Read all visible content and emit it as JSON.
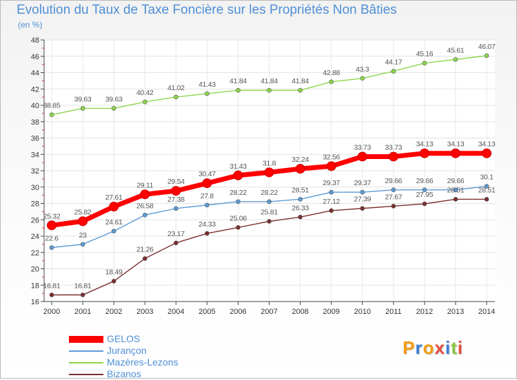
{
  "chart_data": {
    "type": "line",
    "title": "Evolution du Taux de Taxe Foncière sur les Propriétés Non Bâties",
    "ylabel": "(en %)",
    "x": [
      "2000",
      "2001",
      "2002",
      "2003",
      "2004",
      "2005",
      "2006",
      "2007",
      "2008",
      "2009",
      "2010",
      "2011",
      "2012",
      "2013",
      "2014"
    ],
    "ylim": [
      16,
      48
    ],
    "yticks": [
      16,
      18,
      20,
      22,
      24,
      26,
      28,
      30,
      32,
      34,
      36,
      38,
      40,
      42,
      44,
      46,
      48
    ],
    "grid": true,
    "legend_placement": "bottom-left",
    "series": [
      {
        "name": "GELOS",
        "color": "#ff0000",
        "values": [
          25.32,
          25.82,
          27.61,
          29.11,
          29.54,
          30.47,
          31.43,
          31.8,
          32.24,
          32.56,
          33.73,
          33.73,
          34.13,
          34.13,
          34.13
        ],
        "labels": [
          "25.32",
          "25.82",
          "27.61",
          "29.11",
          "29.54",
          "30.47",
          "31.43",
          "31.8",
          "32.24",
          "32.56",
          "33.73",
          "33.73",
          "34.13",
          "34.13",
          "34.13"
        ]
      },
      {
        "name": "Jurançon",
        "color": "#5b9bd5",
        "values": [
          22.6,
          23,
          24.61,
          26.58,
          27.38,
          27.8,
          28.22,
          28.22,
          28.51,
          29.37,
          29.37,
          29.66,
          29.66,
          29.66,
          30.1
        ],
        "labels": [
          "22.6",
          "23",
          "24.61",
          "26.58",
          "27.38",
          "27.8",
          "28.22",
          "28.22",
          "28.51",
          "29.37",
          "29.37",
          "29.66",
          "29.66",
          "29.66",
          "30.1"
        ]
      },
      {
        "name": "Mazères-Lezons",
        "color": "#8cd64a",
        "values": [
          38.85,
          39.63,
          39.63,
          40.42,
          41.02,
          41.43,
          41.84,
          41.84,
          41.84,
          42.88,
          43.3,
          44.17,
          45.16,
          45.61,
          46.07
        ],
        "labels": [
          "38.85",
          "39.63",
          "39.63",
          "40.42",
          "41.02",
          "41.43",
          "41.84",
          "41.84",
          "41.84",
          "42.88",
          "43.3",
          "44.17",
          "45.16",
          "45.61",
          "46.07"
        ]
      },
      {
        "name": "Bizanos",
        "color": "#7a2e2e",
        "values": [
          16.81,
          16.81,
          18.49,
          21.26,
          23.17,
          24.33,
          25.06,
          25.81,
          26.33,
          27.12,
          27.39,
          27.67,
          27.95,
          28.51,
          28.51
        ],
        "labels": [
          "16.81",
          "16.81",
          "18.49",
          "21.26",
          "23.17",
          "24.33",
          "25.06",
          "25.81",
          "26.33",
          "27.12",
          "27.39",
          "27.67",
          "27.95",
          "28.51",
          "28.51"
        ]
      }
    ]
  },
  "logo": {
    "text": "Proxiti",
    "letters": [
      "P",
      "r",
      "o",
      "x",
      "i",
      "t",
      "i"
    ],
    "colors": [
      "#f39c12",
      "#3a7bd5",
      "#f39c12",
      "#e74c3c",
      "#3a7bd5",
      "#8cc63f",
      "#e74c3c"
    ]
  }
}
